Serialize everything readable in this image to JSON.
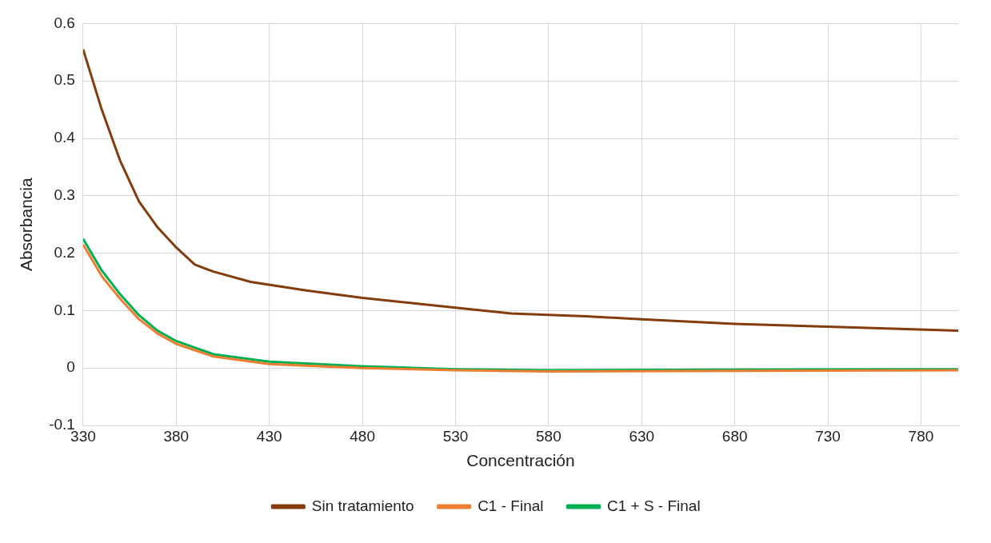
{
  "chart_data": {
    "type": "line",
    "xlabel": "Concentración",
    "ylabel": "Absorbancia",
    "xlim": [
      330,
      800
    ],
    "xticks": [
      330,
      380,
      430,
      480,
      530,
      580,
      630,
      680,
      730,
      780
    ],
    "ylim": [
      -0.1,
      0.6
    ],
    "yticks": [
      -0.1,
      0,
      0.1,
      0.2,
      0.3,
      0.4,
      0.5,
      0.6
    ],
    "grid": true,
    "legend": "bottom",
    "marker": "none",
    "line_style": "solid",
    "series": [
      {
        "name": "Sin tratamiento",
        "color": "#843c0c",
        "x": [
          330,
          340,
          350,
          360,
          370,
          380,
          390,
          400,
          420,
          450,
          480,
          530,
          560,
          600,
          630,
          680,
          730,
          800
        ],
        "values": [
          0.555,
          0.45,
          0.36,
          0.29,
          0.245,
          0.21,
          0.18,
          0.168,
          0.15,
          0.135,
          0.122,
          0.105,
          0.095,
          0.09,
          0.085,
          0.077,
          0.072,
          0.065
        ]
      },
      {
        "name": "C1 - Final",
        "color": "#ed7d31",
        "x": [
          330,
          340,
          350,
          360,
          370,
          380,
          400,
          430,
          480,
          530,
          580,
          680,
          800
        ],
        "values": [
          0.215,
          0.16,
          0.12,
          0.085,
          0.06,
          0.042,
          0.02,
          0.007,
          0.0,
          -0.004,
          -0.006,
          -0.005,
          -0.004
        ]
      },
      {
        "name": "C1 + S - Final",
        "color": "#00b050",
        "x": [
          330,
          340,
          350,
          360,
          370,
          380,
          400,
          430,
          480,
          530,
          580,
          680,
          800
        ],
        "values": [
          0.225,
          0.17,
          0.128,
          0.092,
          0.065,
          0.047,
          0.024,
          0.011,
          0.003,
          -0.002,
          -0.004,
          -0.003,
          -0.002
        ]
      }
    ]
  }
}
